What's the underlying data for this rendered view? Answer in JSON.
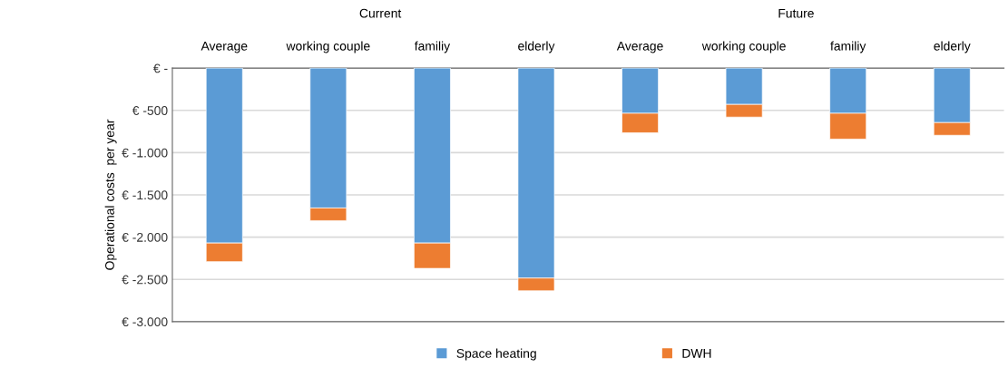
{
  "chart_data": {
    "type": "bar",
    "stacked": true,
    "ylabel": "Operational costs  per year",
    "categories": [
      "Average",
      "working couple",
      "familiy",
      "elderly",
      "Average",
      "working couple",
      "familiy",
      "elderly"
    ],
    "series": [
      {
        "name": "Space heating",
        "color": "#5b9bd5",
        "values": [
          -2070,
          -1655,
          -2070,
          -2485,
          -535,
          -430,
          -535,
          -645
        ]
      },
      {
        "name": "DWH",
        "color": "#ed7d31",
        "values": [
          -220,
          -150,
          -300,
          -150,
          -230,
          -150,
          -305,
          -150
        ]
      }
    ],
    "annotations": [
      "Current",
      "Future"
    ],
    "ylim": [
      -3000,
      0
    ],
    "yticks": [
      {
        "value": 0,
        "label": "€ -"
      },
      {
        "value": -500,
        "label": "€ -500"
      },
      {
        "value": -1000,
        "label": "€ -1.000"
      },
      {
        "value": -1500,
        "label": "€ -1.500"
      },
      {
        "value": -2000,
        "label": "€ -2.000"
      },
      {
        "value": -2500,
        "label": "€ -2.500"
      },
      {
        "value": -3000,
        "label": "€ -3.000"
      }
    ],
    "grid": "y",
    "legend": "bottom"
  }
}
